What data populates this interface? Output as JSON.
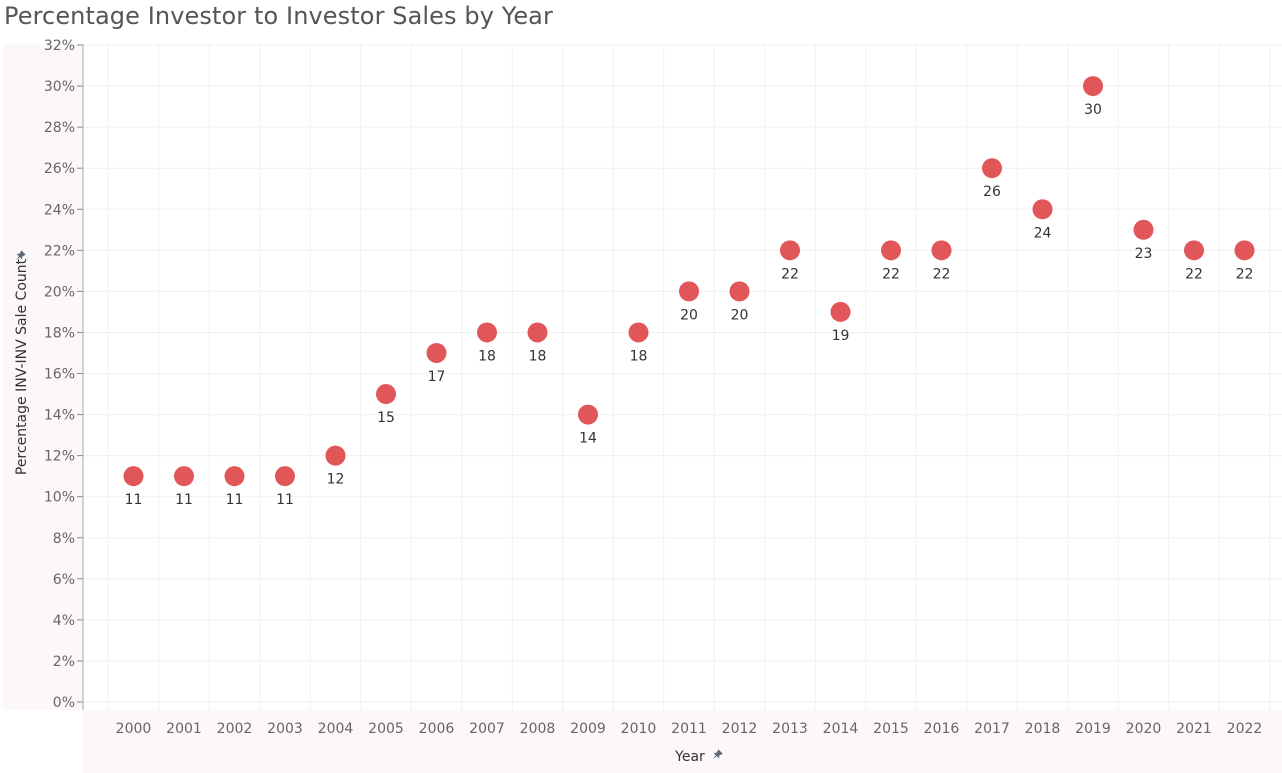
{
  "title": "Percentage Investor to Investor Sales by Year",
  "chart_data": {
    "type": "scatter",
    "title": "Percentage Investor to Investor Sales by Year",
    "xlabel": "Year",
    "ylabel": "Percentage INV-INV Sale Count",
    "categories": [
      "2000",
      "2001",
      "2002",
      "2003",
      "2004",
      "2005",
      "2006",
      "2007",
      "2008",
      "2009",
      "2010",
      "2011",
      "2012",
      "2013",
      "2014",
      "2015",
      "2016",
      "2017",
      "2018",
      "2019",
      "2020",
      "2021",
      "2022"
    ],
    "values": [
      11,
      11,
      11,
      11,
      12,
      15,
      17,
      18,
      18,
      14,
      18,
      20,
      20,
      22,
      19,
      22,
      22,
      26,
      24,
      30,
      23,
      22,
      22
    ],
    "yticks": [
      "0%",
      "2%",
      "4%",
      "6%",
      "8%",
      "10%",
      "12%",
      "14%",
      "16%",
      "18%",
      "20%",
      "22%",
      "24%",
      "26%",
      "28%",
      "30%",
      "32%"
    ],
    "ylim": [
      0,
      32
    ],
    "grid": true,
    "marker_color": "#e15759",
    "pin_icon": "pin-icon"
  }
}
